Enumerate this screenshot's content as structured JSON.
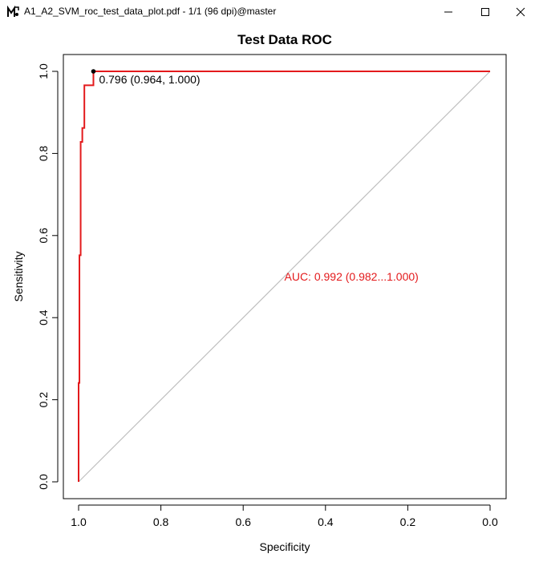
{
  "window": {
    "title": "A1_A2_SVM_roc_test_data_plot.pdf - 1/1 (96 dpi)@master",
    "icons": {
      "app": "mupdf-app-icon",
      "minimize": "minimize-icon",
      "maximize": "maximize-icon",
      "close": "close-icon"
    }
  },
  "chart_data": {
    "type": "line",
    "title": "Test Data ROC",
    "xlabel": "Specificity",
    "ylabel": "Sensitivity",
    "xlim": [
      1.0,
      0.0
    ],
    "ylim": [
      0.0,
      1.0
    ],
    "x_reversed": true,
    "xticks": [
      "1.0",
      "0.8",
      "0.6",
      "0.4",
      "0.2",
      "0.0"
    ],
    "yticks": [
      "0.0",
      "0.2",
      "0.4",
      "0.6",
      "0.8",
      "1.0"
    ],
    "grid": false,
    "legend": "none",
    "series": [
      {
        "color": "#e31a1c",
        "specificity": [
          1.0,
          1.0,
          0.998,
          0.998,
          0.995,
          0.995,
          0.991,
          0.991,
          0.986,
          0.986,
          0.976,
          0.976,
          0.964,
          0.964,
          0.0
        ],
        "sensitivity": [
          0.0,
          0.241,
          0.241,
          0.552,
          0.552,
          0.828,
          0.828,
          0.862,
          0.862,
          0.966,
          0.966,
          0.966,
          0.966,
          1.0,
          1.0
        ]
      }
    ],
    "diagonal": {
      "color": "#bebebe",
      "from": [
        1.0,
        0.0
      ],
      "to": [
        0.0,
        1.0
      ]
    },
    "threshold_point": {
      "specificity": 0.964,
      "sensitivity": 1.0,
      "label": "0.796 (0.964, 1.000)",
      "color": "#000000"
    },
    "auc_annotation": {
      "text": "AUC: 0.992 (0.982...1.000)",
      "color": "#e31a1c",
      "specificity": 0.5,
      "sensitivity": 0.5
    }
  }
}
